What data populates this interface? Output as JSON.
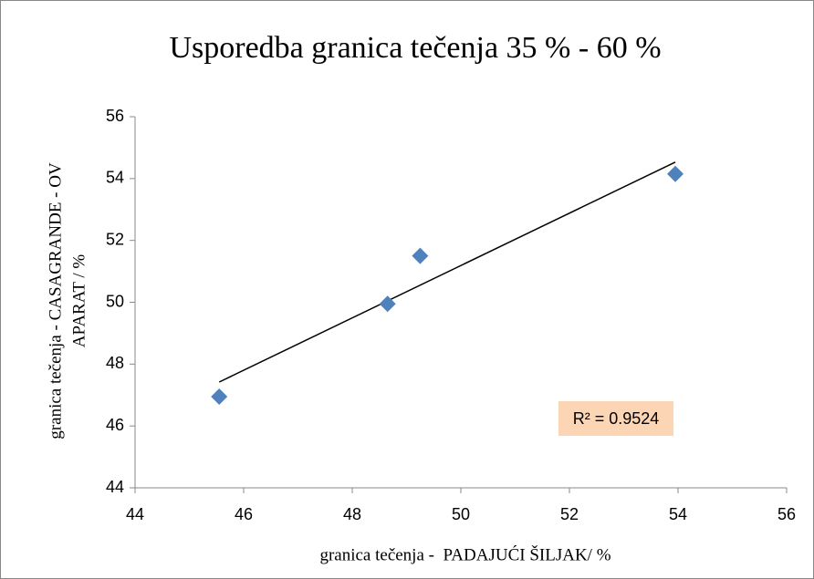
{
  "chart_data": {
    "type": "scatter",
    "title": "Usporedba granica tečenja 35 % - 60 %",
    "xlabel": "granica tečenja -  PADAJUĆI ŠILJAK/ %",
    "ylabel": [
      "granica tečenja - CASAGRANDE - OV",
      "APARAT / %"
    ],
    "x": [
      45.55,
      48.65,
      49.25,
      53.95
    ],
    "values": [
      46.95,
      49.95,
      51.5,
      54.15
    ],
    "color": "#4f81bd",
    "trendline": true,
    "annotation": "R² = 0.9524",
    "xlim": [
      44,
      56
    ],
    "xticks": [
      44,
      46,
      48,
      50,
      52,
      54,
      56
    ],
    "ylim": [
      44,
      56
    ],
    "yticks": [
      44,
      46,
      48,
      50,
      52,
      54,
      56
    ]
  }
}
